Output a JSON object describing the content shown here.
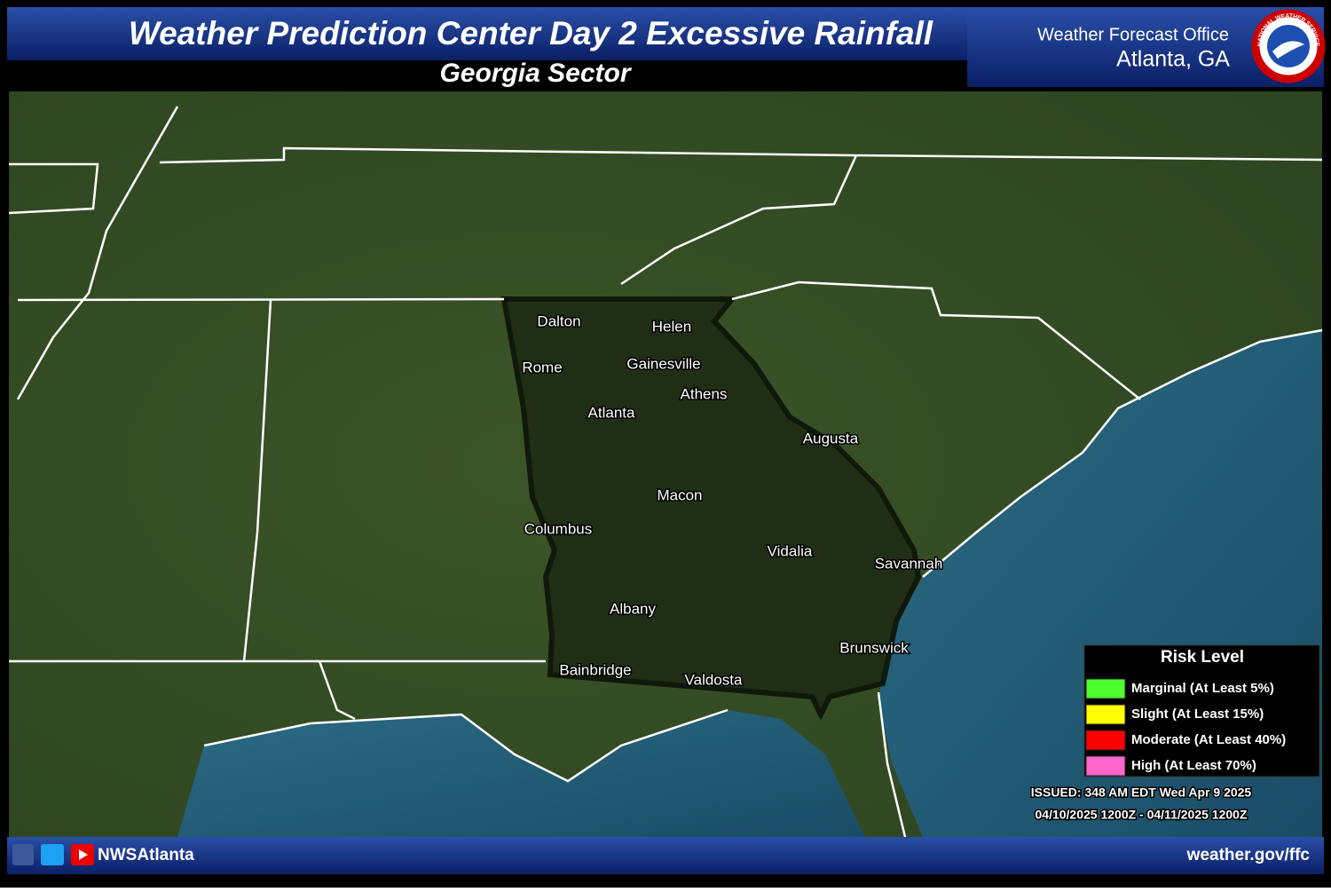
{
  "header": {
    "title": "Weather Prediction Center Day 2 Excessive Rainfall",
    "subtitle": "Georgia Sector",
    "office": "Weather Forecast Office",
    "location": "Atlanta, GA",
    "logo_text": "NATIONAL WEATHER SERVICE"
  },
  "map": {
    "cities": [
      "Dalton",
      "Helen",
      "Rome",
      "Gainesville",
      "Athens",
      "Atlanta",
      "Augusta",
      "Macon",
      "Columbus",
      "Vidalia",
      "Savannah",
      "Albany",
      "Brunswick",
      "Bainbridge",
      "Valdosta"
    ]
  },
  "legend": {
    "title": "Risk Level",
    "levels": [
      {
        "label": "Marginal (At Least 5%)",
        "color": "#4cff2e"
      },
      {
        "label": "Slight (At Least 15%)",
        "color": "#ffff00"
      },
      {
        "label": "Moderate (At Least 40%)",
        "color": "#ff0000"
      },
      {
        "label": "High (At Least 70%)",
        "color": "#ff66cc"
      }
    ]
  },
  "issued": "ISSUED: 348 AM EDT Wed Apr 9 2025",
  "valid": "04/10/2025 1200Z - 04/11/2025 1200Z",
  "footer": {
    "handle": "NWSAtlanta",
    "url": "weather.gov/ffc"
  }
}
